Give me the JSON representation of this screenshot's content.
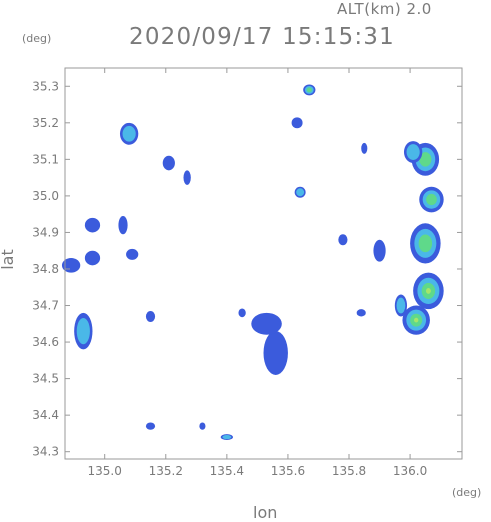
{
  "header": {
    "altitude_label": "ALT(km) 2.0",
    "timestamp": "2020/09/17 15:15:31",
    "y_unit": "(deg)",
    "x_unit": "(deg)"
  },
  "colors": {
    "frame": "#9a9a9a",
    "echo_weak": "#3b5bdc",
    "echo_mid": "#4ab8e8",
    "echo_strong": "#5fd98a",
    "echo_peak": "#a6e66a"
  },
  "chart_data": {
    "type": "heatmap",
    "title": "2020/09/17 15:15:31",
    "subtitle": "ALT(km) 2.0",
    "xlabel": "lon",
    "ylabel": "lat",
    "x_unit": "(deg)",
    "y_unit": "(deg)",
    "xlim": [
      134.87,
      136.17
    ],
    "ylim": [
      34.28,
      35.35
    ],
    "xticks": [
      "135.0",
      "135.2",
      "135.4",
      "135.6",
      "135.8",
      "136.0"
    ],
    "xtick_values": [
      135.0,
      135.2,
      135.4,
      135.6,
      135.8,
      136.0
    ],
    "yticks": [
      "34.3",
      "34.4",
      "34.5",
      "34.6",
      "34.7",
      "34.8",
      "34.9",
      "35.0",
      "35.1",
      "35.2",
      "35.3"
    ],
    "ytick_values": [
      34.3,
      34.4,
      34.5,
      34.6,
      34.7,
      34.8,
      34.9,
      35.0,
      35.1,
      35.2,
      35.3
    ],
    "grid": false,
    "echoes": [
      {
        "lon": 136.05,
        "lat": 35.1,
        "rx": 0.045,
        "ry": 0.045,
        "level": 3
      },
      {
        "lon": 136.01,
        "lat": 35.12,
        "rx": 0.03,
        "ry": 0.03,
        "level": 2
      },
      {
        "lon": 136.07,
        "lat": 34.99,
        "rx": 0.04,
        "ry": 0.035,
        "level": 3
      },
      {
        "lon": 136.05,
        "lat": 34.87,
        "rx": 0.05,
        "ry": 0.055,
        "level": 3
      },
      {
        "lon": 136.06,
        "lat": 34.74,
        "rx": 0.05,
        "ry": 0.05,
        "level": 4
      },
      {
        "lon": 136.02,
        "lat": 34.66,
        "rx": 0.045,
        "ry": 0.04,
        "level": 4
      },
      {
        "lon": 135.97,
        "lat": 34.7,
        "rx": 0.02,
        "ry": 0.03,
        "level": 2
      },
      {
        "lon": 134.93,
        "lat": 34.63,
        "rx": 0.03,
        "ry": 0.05,
        "level": 2
      },
      {
        "lon": 134.89,
        "lat": 34.81,
        "rx": 0.03,
        "ry": 0.02,
        "level": 1
      },
      {
        "lon": 134.96,
        "lat": 34.83,
        "rx": 0.025,
        "ry": 0.02,
        "level": 1
      },
      {
        "lon": 134.96,
        "lat": 34.92,
        "rx": 0.025,
        "ry": 0.02,
        "level": 1
      },
      {
        "lon": 135.06,
        "lat": 34.92,
        "rx": 0.015,
        "ry": 0.025,
        "level": 1
      },
      {
        "lon": 135.09,
        "lat": 34.84,
        "rx": 0.02,
        "ry": 0.015,
        "level": 1
      },
      {
        "lon": 135.08,
        "lat": 35.17,
        "rx": 0.03,
        "ry": 0.03,
        "level": 2
      },
      {
        "lon": 135.21,
        "lat": 35.09,
        "rx": 0.02,
        "ry": 0.02,
        "level": 1
      },
      {
        "lon": 135.64,
        "lat": 35.01,
        "rx": 0.018,
        "ry": 0.015,
        "level": 2
      },
      {
        "lon": 135.63,
        "lat": 35.2,
        "rx": 0.018,
        "ry": 0.015,
        "level": 1
      },
      {
        "lon": 135.67,
        "lat": 35.29,
        "rx": 0.02,
        "ry": 0.015,
        "level": 3
      },
      {
        "lon": 135.85,
        "lat": 35.13,
        "rx": 0.01,
        "ry": 0.015,
        "level": 1
      },
      {
        "lon": 135.9,
        "lat": 34.85,
        "rx": 0.02,
        "ry": 0.03,
        "level": 1
      },
      {
        "lon": 135.78,
        "lat": 34.88,
        "rx": 0.015,
        "ry": 0.015,
        "level": 1
      },
      {
        "lon": 135.56,
        "lat": 34.57,
        "rx": 0.04,
        "ry": 0.06,
        "level": 1
      },
      {
        "lon": 135.53,
        "lat": 34.65,
        "rx": 0.05,
        "ry": 0.03,
        "level": 1
      },
      {
        "lon": 135.4,
        "lat": 34.34,
        "rx": 0.02,
        "ry": 0.008,
        "level": 2
      },
      {
        "lon": 135.15,
        "lat": 34.37,
        "rx": 0.015,
        "ry": 0.01,
        "level": 1
      },
      {
        "lon": 135.15,
        "lat": 34.67,
        "rx": 0.015,
        "ry": 0.015,
        "level": 1
      },
      {
        "lon": 135.84,
        "lat": 34.68,
        "rx": 0.015,
        "ry": 0.01,
        "level": 1
      },
      {
        "lon": 135.32,
        "lat": 34.37,
        "rx": 0.01,
        "ry": 0.01,
        "level": 1
      },
      {
        "lon": 135.27,
        "lat": 35.05,
        "rx": 0.012,
        "ry": 0.02,
        "level": 1
      },
      {
        "lon": 135.45,
        "lat": 34.68,
        "rx": 0.012,
        "ry": 0.012,
        "level": 1
      }
    ]
  }
}
